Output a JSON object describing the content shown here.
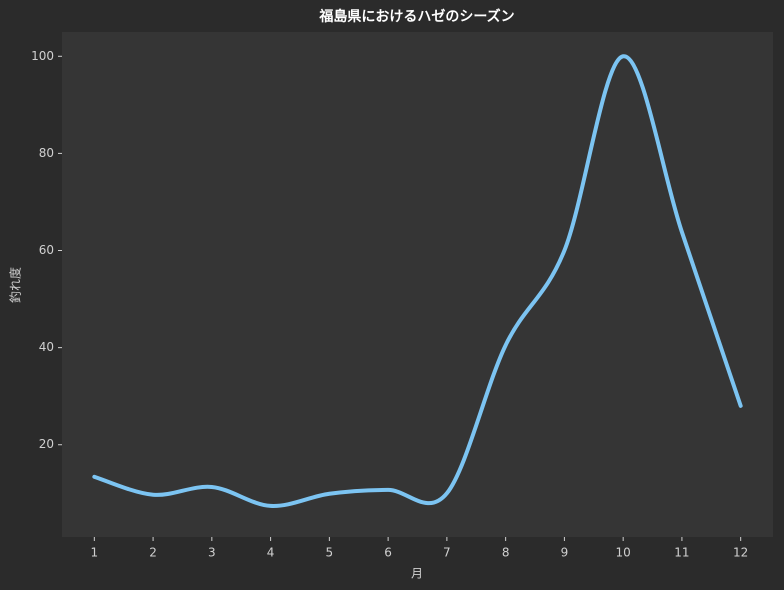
{
  "chart_data": {
    "type": "line",
    "title": "福島県におけるハゼのシーズン",
    "xlabel": "月",
    "ylabel": "釣れ度",
    "x": [
      1,
      2,
      3,
      4,
      5,
      6,
      7,
      8,
      9,
      10,
      11,
      12
    ],
    "series": [
      {
        "name": "釣れ度",
        "color": "#7cc4f2",
        "values": [
          13.4,
          9.7,
          11.3,
          7.4,
          9.9,
          10.7,
          10,
          40.5,
          60,
          100,
          63.8,
          28
        ]
      }
    ],
    "xlim": [
      0.45,
      12.55
    ],
    "ylim": [
      1,
      105
    ],
    "xticks": [
      1,
      2,
      3,
      4,
      5,
      6,
      7,
      8,
      9,
      10,
      11,
      12
    ],
    "yticks": [
      20,
      40,
      60,
      80,
      100
    ],
    "grid": false
  }
}
